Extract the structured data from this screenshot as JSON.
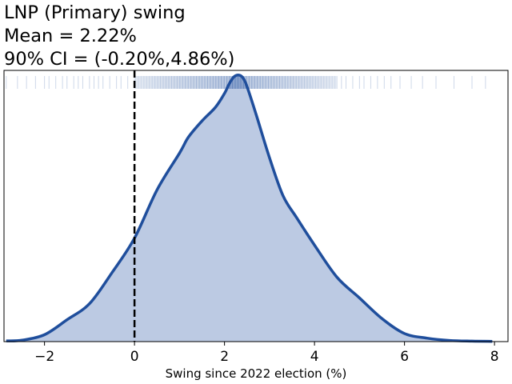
{
  "chart_data": {
    "type": "area",
    "title_lines": [
      "LNP (Primary) swing",
      "Mean = 2.22%",
      "90% CI = (-0.20%,4.86%)"
    ],
    "xlabel": "Swing since 2022 election (%)",
    "ylabel": "",
    "xlim": [
      -2.9,
      8.3
    ],
    "ylim": [
      0,
      1.18
    ],
    "x_ticks": [
      -2,
      0,
      2,
      4,
      6,
      8
    ],
    "x_tick_labels": [
      "−2",
      "0",
      "2",
      "4",
      "6",
      "8"
    ],
    "y_ticks_shown": false,
    "grid": false,
    "reference_line": {
      "x": 0,
      "style": "dashed",
      "color": "#000000"
    },
    "series": [
      {
        "type": "density",
        "x": [
          -2.85,
          -2.5,
          -2.0,
          -1.5,
          -1.0,
          -0.5,
          0.0,
          0.5,
          1.0,
          1.2,
          1.5,
          1.8,
          2.0,
          2.1,
          2.2,
          2.3,
          2.4,
          2.5,
          2.7,
          3.0,
          3.3,
          3.6,
          4.0,
          4.5,
          5.0,
          5.5,
          6.0,
          6.5,
          7.0,
          7.5,
          7.95
        ],
        "y": [
          0.003,
          0.006,
          0.03,
          0.095,
          0.165,
          0.3,
          0.45,
          0.66,
          0.82,
          0.89,
          0.96,
          1.02,
          1.08,
          1.12,
          1.15,
          1.16,
          1.15,
          1.11,
          0.99,
          0.8,
          0.635,
          0.54,
          0.42,
          0.28,
          0.19,
          0.1,
          0.035,
          0.015,
          0.005,
          0.002,
          0.001
        ]
      }
    ],
    "rug": {
      "dense_range": [
        0.0,
        4.5
      ],
      "sparse_points": [
        -2.85,
        -2.6,
        -2.4,
        -2.2,
        -2.0,
        -1.9,
        -1.75,
        -1.6,
        -1.5,
        -1.35,
        -1.25,
        -1.15,
        -1.0,
        -0.9,
        -0.8,
        -0.7,
        -0.55,
        -0.4,
        -0.3,
        -0.15,
        4.6,
        4.7,
        4.85,
        5.0,
        5.1,
        5.25,
        5.4,
        5.55,
        5.7,
        5.9,
        6.15,
        6.4,
        6.7,
        7.1,
        7.5,
        7.8
      ]
    },
    "colors": {
      "line": "#1f4e9c",
      "fill": "#bccae3",
      "rug": "#1f4e9c",
      "ref_line": "#000000"
    }
  }
}
